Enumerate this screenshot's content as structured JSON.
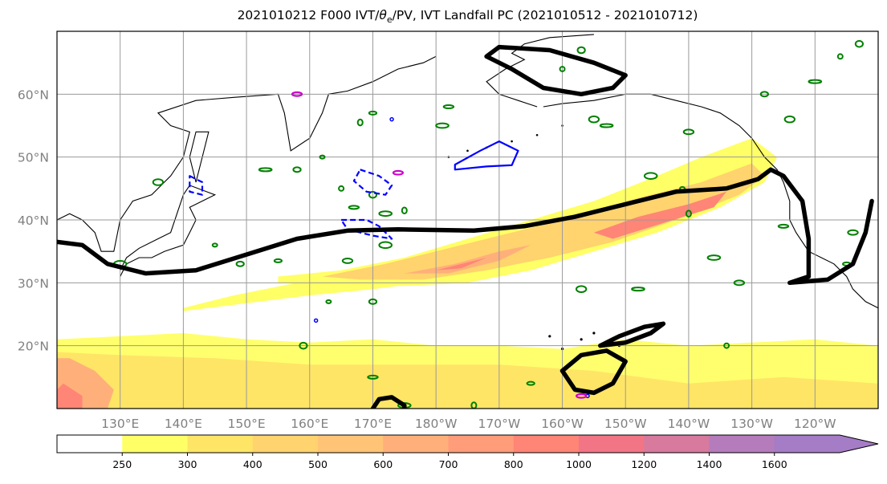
{
  "chart_data": {
    "type": "heatmap",
    "title_text": "2021010212 F000 IVT/",
    "title_symbol": "θ",
    "title_sub": "e",
    "title_tail": "/PV, IVT Landfall PC (2021010512 - 2021010712)",
    "projection": "PlateCarree",
    "lon_range": [
      120,
      250
    ],
    "lat_range": [
      10,
      70
    ],
    "lat_ticks": [
      {
        "lat": 20,
        "label": "20°N"
      },
      {
        "lat": 30,
        "label": "30°N"
      },
      {
        "lat": 40,
        "label": "40°N"
      },
      {
        "lat": 50,
        "label": "50°N"
      },
      {
        "lat": 60,
        "label": "60°N"
      }
    ],
    "lon_ticks": [
      {
        "lon": 130,
        "label": "130°E"
      },
      {
        "lon": 140,
        "label": "140°E"
      },
      {
        "lon": 150,
        "label": "150°E"
      },
      {
        "lon": 160,
        "label": "160°E"
      },
      {
        "lon": 170,
        "label": "170°E"
      },
      {
        "lon": 180,
        "label": "180°W"
      },
      {
        "lon": 190,
        "label": "170°W"
      },
      {
        "lon": 200,
        "label": "160°W"
      },
      {
        "lon": 210,
        "label": "150°W"
      },
      {
        "lon": 220,
        "label": "140°W"
      },
      {
        "lon": 230,
        "label": "130°W"
      },
      {
        "lon": 240,
        "label": "120°W"
      }
    ],
    "grid": true,
    "colorbar": {
      "levels": [
        250,
        300,
        400,
        500,
        600,
        700,
        800,
        1000,
        1200,
        1400,
        1600
      ],
      "colors": [
        "#ffffff",
        "#ffff66",
        "#ffe566",
        "#ffd36e",
        "#ffc476",
        "#ffb07a",
        "#ff9c7a",
        "#ff8576",
        "#f27586",
        "#d8799e",
        "#b57cbc",
        "#a57cc6"
      ],
      "extend": "max"
    },
    "ivt_regions": [
      {
        "name": "tropical band",
        "lon_range": [
          120,
          250
        ],
        "lat_range": [
          10,
          22
        ],
        "max_level": 800
      },
      {
        "name": "atmospheric river",
        "lon_from": [
          156,
          30
        ],
        "lon_to": [
          233,
          48
        ],
        "max_level": 1000
      },
      {
        "name": "subtropical strip",
        "lon_range": [
          145,
          180
        ],
        "lat_range": [
          27,
          32
        ],
        "max_level": 400
      }
    ],
    "landfall_pc_contour": {
      "color": "#000000",
      "main_line": [
        [
          120,
          36.5
        ],
        [
          124,
          36
        ],
        [
          128,
          33
        ],
        [
          134,
          31.5
        ],
        [
          142,
          32
        ],
        [
          150,
          34.5
        ],
        [
          158,
          37
        ],
        [
          166,
          38.3
        ],
        [
          174,
          38.5
        ],
        [
          186,
          38.3
        ],
        [
          194,
          39
        ],
        [
          202,
          40.5
        ],
        [
          210,
          42.5
        ],
        [
          218,
          44.5
        ],
        [
          226,
          45
        ],
        [
          231,
          46.5
        ],
        [
          233,
          48
        ],
        [
          235,
          47
        ],
        [
          238,
          43
        ],
        [
          239,
          37
        ],
        [
          239,
          31
        ],
        [
          236,
          30
        ],
        [
          242,
          30.5
        ],
        [
          246,
          33
        ],
        [
          248,
          38
        ],
        [
          249,
          43
        ]
      ],
      "closed_loops": [
        [
          [
            188,
            66
          ],
          [
            192,
            64
          ],
          [
            197,
            61
          ],
          [
            203,
            60
          ],
          [
            208,
            61
          ],
          [
            210,
            63
          ],
          [
            205,
            65
          ],
          [
            198,
            67
          ],
          [
            190,
            67.5
          ],
          [
            188,
            66
          ]
        ],
        [
          [
            200,
            16
          ],
          [
            203,
            18.5
          ],
          [
            207,
            19.2
          ],
          [
            210,
            17.5
          ],
          [
            208,
            14
          ],
          [
            205,
            12.5
          ],
          [
            202,
            13
          ],
          [
            200,
            16
          ]
        ],
        [
          [
            206,
            20
          ],
          [
            209,
            21.5
          ],
          [
            213,
            23
          ],
          [
            216,
            23.5
          ],
          [
            214,
            22
          ],
          [
            210,
            20.5
          ],
          [
            206,
            20
          ]
        ],
        [
          [
            170,
            10
          ],
          [
            171,
            11.5
          ],
          [
            173,
            11.8
          ],
          [
            175,
            10.5
          ],
          [
            175,
            10
          ]
        ]
      ]
    },
    "theta_e_contours": {
      "colors": {
        "positive": "#008000",
        "negative": "#0000ff",
        "extreme": "#cc00cc"
      }
    }
  }
}
